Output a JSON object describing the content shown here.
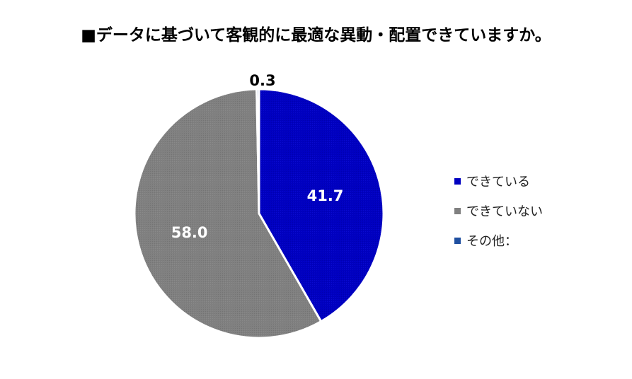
{
  "chart_data": {
    "type": "pie",
    "title": "■データに基づいて客観的に最適な異動・配置できていますか。",
    "slices": [
      {
        "label": "できている",
        "value": 41.7,
        "display": "41.7",
        "color": "#0000c0"
      },
      {
        "label": "できていない",
        "value": 58.0,
        "display": "58.0",
        "color": "#808080"
      },
      {
        "label": "その他：",
        "value": 0.3,
        "display": "0.3",
        "color": "#1f4fa0"
      }
    ],
    "legend_position": "right"
  }
}
